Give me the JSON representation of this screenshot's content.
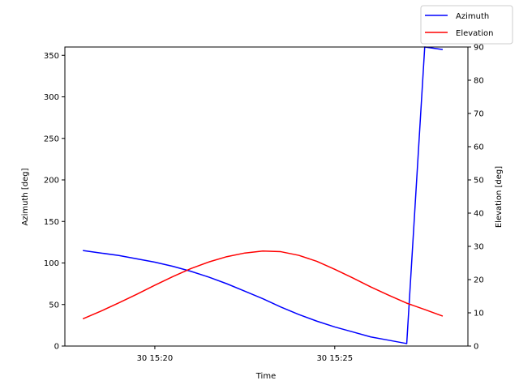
{
  "chart_data": {
    "type": "line",
    "title": "",
    "xlabel": "Time",
    "x_tick_labels": [
      "30 15:20",
      "30 15:25"
    ],
    "x_tick_minutes": [
      20,
      25
    ],
    "xlim_minutes": [
      17.5,
      28.7
    ],
    "y_left": {
      "label": "Azimuth [deg]",
      "lim": [
        0,
        360
      ],
      "ticks": [
        0,
        50,
        100,
        150,
        200,
        250,
        300,
        350
      ]
    },
    "y_right": {
      "label": "Elevation [deg]",
      "lim": [
        0,
        90
      ],
      "ticks": [
        0,
        10,
        20,
        30,
        40,
        50,
        60,
        70,
        80,
        90
      ]
    },
    "grid": false,
    "legend_position": "top-right (outside axes)",
    "series": [
      {
        "name": "Azimuth",
        "axis": "left",
        "color": "#0000ff",
        "x_minutes": [
          18.0,
          18.5,
          19.0,
          19.5,
          20.0,
          20.5,
          21.0,
          21.5,
          22.0,
          22.5,
          23.0,
          23.5,
          24.0,
          24.5,
          25.0,
          25.5,
          26.0,
          26.5,
          27.0,
          27.5,
          28.0
        ],
        "values": [
          115,
          112,
          109,
          105,
          101,
          96,
          90,
          83,
          75,
          66,
          57,
          47,
          38,
          30,
          23,
          17,
          11,
          7,
          3,
          360,
          357
        ]
      },
      {
        "name": "Elevation",
        "axis": "right",
        "color": "#ff0000",
        "x_minutes": [
          18.0,
          18.5,
          19.0,
          19.5,
          20.0,
          20.5,
          21.0,
          21.5,
          22.0,
          22.5,
          23.0,
          23.5,
          24.0,
          24.5,
          25.0,
          25.5,
          26.0,
          26.5,
          27.0,
          27.5,
          28.0
        ],
        "values": [
          8.2,
          10.5,
          13.0,
          15.6,
          18.3,
          20.9,
          23.3,
          25.3,
          26.9,
          28.0,
          28.6,
          28.4,
          27.3,
          25.5,
          23.1,
          20.5,
          17.8,
          15.3,
          12.9,
          11.0,
          9.0
        ]
      }
    ]
  }
}
